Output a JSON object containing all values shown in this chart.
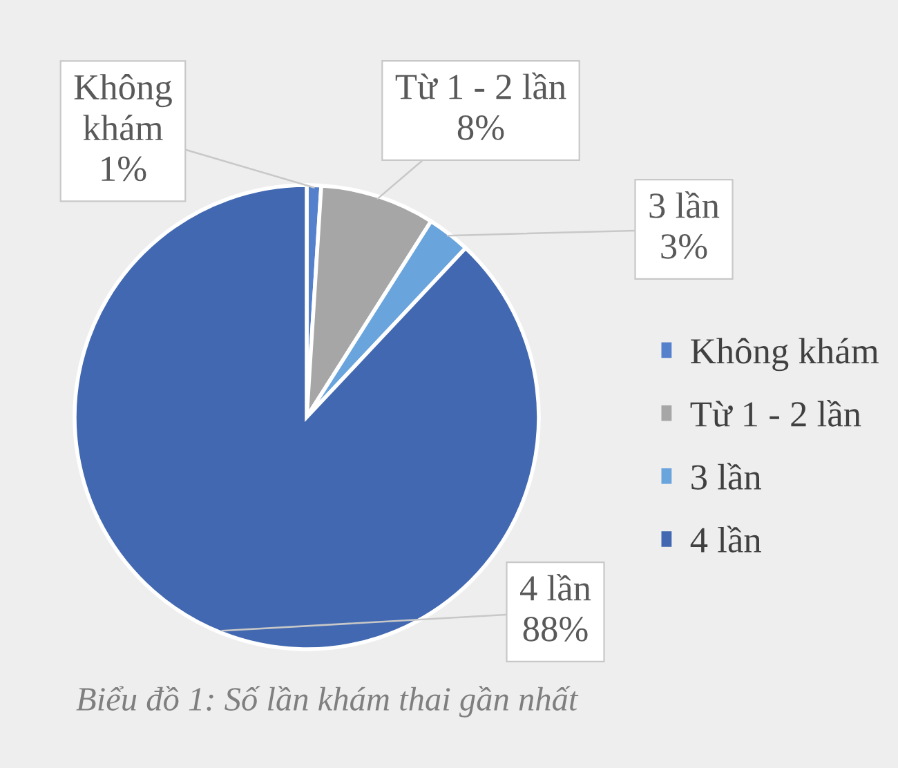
{
  "chart_data": {
    "type": "pie",
    "title": "Biểu đồ 1: Số lần khám thai gần nhất",
    "categories": [
      "Không khám",
      "Từ 1 - 2 lần",
      "3 lần",
      "4 lần"
    ],
    "values": [
      1,
      8,
      3,
      88
    ],
    "value_labels": [
      "1%",
      "8%",
      "3%",
      "88%"
    ],
    "colors": [
      "#5580cc",
      "#a6a6a6",
      "#6aa4dc",
      "#4168b0"
    ],
    "legend": "right"
  }
}
